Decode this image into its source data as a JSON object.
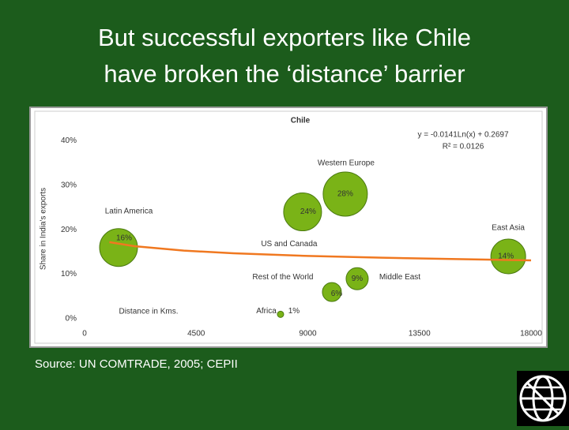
{
  "slide_title": [
    "But successful exporters like Chile",
    "have broken the ‘distance’ barrier"
  ],
  "source": "Source: UN COMTRADE, 2005; CEPII",
  "chart_data": {
    "type": "bubble",
    "title": "Chile",
    "y_label": "Share in India's exports",
    "annotations": [
      "y = -0.0141Ln(x) + 0.2697",
      "R² = 0.0126",
      "Distance in Kms."
    ],
    "points": {
      "names": [
        "Latin America",
        "US and Canada",
        "Western Europe",
        "East Asia",
        "Middle East",
        "Rest of the World",
        "Africa"
      ],
      "x": [
        1370,
        8790,
        10510,
        17080,
        10990,
        9970,
        7900
      ],
      "values": [
        16,
        24,
        28,
        14,
        9,
        6,
        1
      ],
      "value_labels": [
        "16%",
        "24%",
        "28%",
        "14%",
        "9%",
        "6%",
        "1%"
      ],
      "sizes": [
        24,
        24,
        28,
        22,
        14,
        12,
        4
      ],
      "color": "#7ab317"
    },
    "trendline": {
      "x": [
        1000,
        2000,
        4000,
        6000,
        9000,
        12000,
        15000,
        18000
      ],
      "values": [
        17.2,
        16.3,
        15.3,
        14.7,
        14.1,
        13.7,
        13.4,
        13.1
      ],
      "color": "#f07820"
    },
    "xlim": [
      0,
      18000
    ],
    "ylim": [
      0,
      45
    ],
    "xticks": [
      0,
      4500,
      9000,
      13500,
      18000
    ],
    "yticks": [
      {
        "value": 0,
        "label": "0%"
      },
      {
        "value": 10,
        "label": "10%"
      },
      {
        "value": 20,
        "label": "20%"
      },
      {
        "value": 30,
        "label": "30%"
      },
      {
        "value": 40,
        "label": "40%"
      }
    ],
    "grid": false
  }
}
